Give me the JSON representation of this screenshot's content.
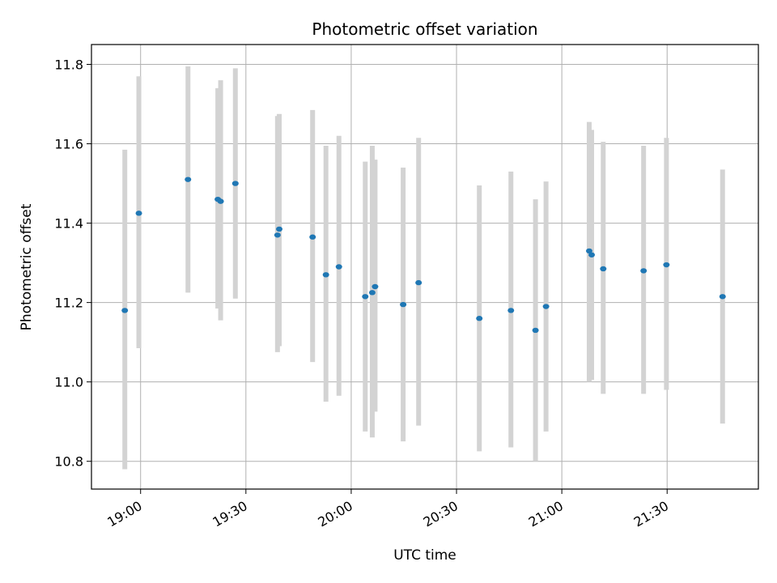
{
  "chart_data": {
    "type": "scatter",
    "title": "Photometric offset variation",
    "xlabel": "UTC time",
    "ylabel": "Photometric offset",
    "x_ticks": [
      "19:00",
      "19:30",
      "20:00",
      "20:30",
      "21:00",
      "21:30"
    ],
    "x_tick_minutes": [
      0,
      30,
      60,
      90,
      120,
      150
    ],
    "xlim_minutes": [
      -14,
      176
    ],
    "y_ticks": [
      "10.8",
      "11.0",
      "11.2",
      "11.4",
      "11.6",
      "11.8"
    ],
    "y_tick_values": [
      10.8,
      11.0,
      11.2,
      11.4,
      11.6,
      11.8
    ],
    "ylim": [
      10.73,
      11.85
    ],
    "grid": true,
    "colors": {
      "point": "#1f77b4",
      "errorbar": "#d3d3d3",
      "grid": "#b0b0b0"
    },
    "points": [
      {
        "t": "18:55.5",
        "m": -4.5,
        "y": 11.18,
        "lo": 10.78,
        "hi": 11.585
      },
      {
        "t": "18:59.5",
        "m": -0.5,
        "y": 11.425,
        "lo": 11.085,
        "hi": 11.77
      },
      {
        "t": "19:13.5",
        "m": 13.5,
        "y": 11.51,
        "lo": 11.225,
        "hi": 11.795
      },
      {
        "t": "19:22.0",
        "m": 22.0,
        "y": 11.46,
        "lo": 11.185,
        "hi": 11.74
      },
      {
        "t": "19:22.8",
        "m": 22.8,
        "y": 11.455,
        "lo": 11.155,
        "hi": 11.76
      },
      {
        "t": "19:27.0",
        "m": 27.0,
        "y": 11.5,
        "lo": 11.21,
        "hi": 11.79
      },
      {
        "t": "19:39.0",
        "m": 39.0,
        "y": 11.37,
        "lo": 11.075,
        "hi": 11.67
      },
      {
        "t": "19:39.5",
        "m": 39.5,
        "y": 11.385,
        "lo": 11.09,
        "hi": 11.675
      },
      {
        "t": "19:49.0",
        "m": 49.0,
        "y": 11.365,
        "lo": 11.05,
        "hi": 11.685
      },
      {
        "t": "19:52.8",
        "m": 52.8,
        "y": 11.27,
        "lo": 10.95,
        "hi": 11.595
      },
      {
        "t": "19:56.5",
        "m": 56.5,
        "y": 11.29,
        "lo": 10.965,
        "hi": 11.62
      },
      {
        "t": "20:04.0",
        "m": 64.0,
        "y": 11.215,
        "lo": 10.875,
        "hi": 11.555
      },
      {
        "t": "20:06.0",
        "m": 66.0,
        "y": 11.225,
        "lo": 10.86,
        "hi": 11.595
      },
      {
        "t": "20:06.8",
        "m": 66.8,
        "y": 11.24,
        "lo": 10.925,
        "hi": 11.56
      },
      {
        "t": "20:14.8",
        "m": 74.8,
        "y": 11.195,
        "lo": 10.85,
        "hi": 11.54
      },
      {
        "t": "20:19.2",
        "m": 79.2,
        "y": 11.25,
        "lo": 10.89,
        "hi": 11.615
      },
      {
        "t": "20:36.5",
        "m": 96.5,
        "y": 11.16,
        "lo": 10.825,
        "hi": 11.495
      },
      {
        "t": "20:45.5",
        "m": 105.5,
        "y": 11.18,
        "lo": 10.835,
        "hi": 11.53
      },
      {
        "t": "20:52.5",
        "m": 112.5,
        "y": 11.13,
        "lo": 10.8,
        "hi": 11.46
      },
      {
        "t": "20:55.5",
        "m": 115.5,
        "y": 11.19,
        "lo": 10.875,
        "hi": 11.505
      },
      {
        "t": "21:07.8",
        "m": 127.8,
        "y": 11.33,
        "lo": 11.0,
        "hi": 11.655
      },
      {
        "t": "21:08.5",
        "m": 128.5,
        "y": 11.32,
        "lo": 11.005,
        "hi": 11.635
      },
      {
        "t": "21:11.8",
        "m": 131.8,
        "y": 11.285,
        "lo": 10.97,
        "hi": 11.605
      },
      {
        "t": "21:23.3",
        "m": 143.3,
        "y": 11.28,
        "lo": 10.97,
        "hi": 11.595
      },
      {
        "t": "21:29.8",
        "m": 149.8,
        "y": 11.295,
        "lo": 10.98,
        "hi": 11.615
      },
      {
        "t": "21:45.8",
        "m": 165.8,
        "y": 11.215,
        "lo": 10.895,
        "hi": 11.535
      }
    ]
  }
}
